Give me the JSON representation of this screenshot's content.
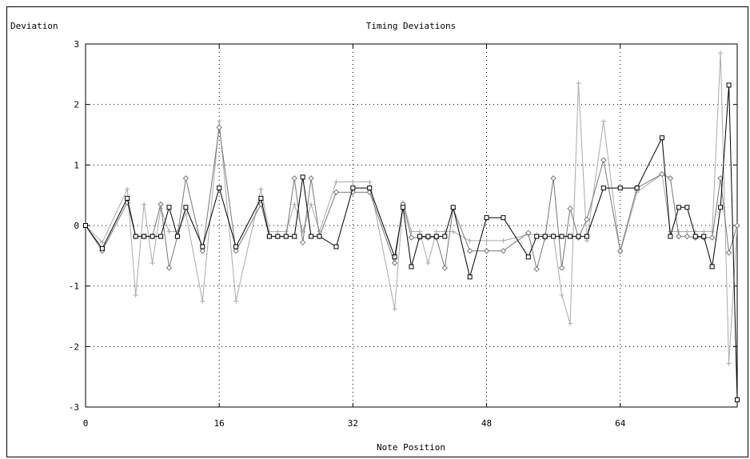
{
  "chart_data": {
    "type": "line",
    "title": "Timing Deviations",
    "xlabel": "Note Position",
    "ylabel": "Deviation",
    "xlim": [
      0,
      78
    ],
    "ylim": [
      -3,
      3
    ],
    "xticks": [
      "0",
      "16",
      "32",
      "48",
      "64"
    ],
    "xtick_values": [
      0,
      16,
      32,
      48,
      64
    ],
    "yticks": [
      "3",
      "2",
      "1",
      "0",
      "-1",
      "-2",
      "-3"
    ],
    "ytick_values": [
      3,
      2,
      1,
      0,
      -1,
      -2,
      -3
    ],
    "grid": true,
    "series": [
      {
        "marker": "square",
        "color": "#000000",
        "x": [
          0,
          2,
          5,
          6,
          7,
          8,
          9,
          10,
          11,
          12,
          14,
          16,
          18,
          21,
          22,
          23,
          24,
          25,
          26,
          27,
          28,
          30,
          32,
          34,
          37,
          38,
          39,
          40,
          41,
          42,
          43,
          44,
          46,
          48,
          50,
          53,
          54,
          55,
          56,
          57,
          58,
          59,
          60,
          62,
          64,
          66,
          69,
          70,
          71,
          72,
          73,
          74,
          75,
          76,
          77,
          78
        ],
        "y": [
          0,
          -0.38,
          0.45,
          -0.18,
          -0.18,
          -0.18,
          -0.18,
          0.3,
          -0.18,
          0.3,
          -0.35,
          0.62,
          -0.35,
          0.45,
          -0.18,
          -0.18,
          -0.18,
          -0.18,
          0.8,
          -0.18,
          -0.18,
          -0.35,
          0.62,
          0.62,
          -0.52,
          0.3,
          -0.68,
          -0.18,
          -0.18,
          -0.18,
          -0.18,
          0.3,
          -0.85,
          0.13,
          0.13,
          -0.52,
          -0.18,
          -0.18,
          -0.18,
          -0.18,
          -0.18,
          -0.18,
          -0.18,
          0.62,
          0.62,
          0.62,
          1.45,
          -0.18,
          0.3,
          0.3,
          -0.18,
          -0.18,
          -0.68,
          0.3,
          2.32,
          -2.88
        ]
      },
      {
        "marker": "diamond",
        "color": "#777777",
        "x": [
          0,
          2,
          5,
          6,
          7,
          8,
          9,
          10,
          11,
          12,
          14,
          16,
          18,
          21,
          22,
          23,
          24,
          25,
          26,
          27,
          28,
          30,
          32,
          34,
          37,
          38,
          39,
          40,
          41,
          42,
          43,
          44,
          46,
          48,
          50,
          53,
          54,
          55,
          56,
          57,
          58,
          59,
          60,
          62,
          64,
          66,
          69,
          70,
          71,
          72,
          73,
          74,
          75,
          76,
          77,
          78
        ],
        "y": [
          0,
          -0.42,
          0.38,
          -0.18,
          -0.18,
          -0.18,
          0.35,
          -0.7,
          -0.18,
          0.78,
          -0.42,
          1.62,
          -0.42,
          0.35,
          -0.18,
          -0.18,
          -0.18,
          0.78,
          -0.28,
          0.78,
          -0.18,
          0.55,
          0.55,
          0.55,
          -0.62,
          0.35,
          -0.2,
          -0.2,
          -0.2,
          -0.2,
          -0.7,
          0.28,
          -0.42,
          -0.42,
          -0.42,
          -0.12,
          -0.72,
          -0.2,
          0.78,
          -0.7,
          0.28,
          -0.2,
          0.1,
          1.08,
          -0.42,
          0.62,
          0.85,
          0.78,
          -0.18,
          -0.18,
          -0.2,
          -0.2,
          -0.2,
          0.78,
          -0.45,
          0
        ]
      },
      {
        "marker": "plus",
        "color": "#aaaaaa",
        "x": [
          0,
          2,
          5,
          6,
          7,
          8,
          9,
          10,
          11,
          12,
          14,
          16,
          18,
          21,
          22,
          23,
          24,
          25,
          26,
          27,
          28,
          30,
          32,
          34,
          37,
          38,
          39,
          40,
          41,
          42,
          43,
          44,
          46,
          48,
          50,
          53,
          54,
          55,
          56,
          57,
          58,
          59,
          60,
          62,
          64,
          66,
          69,
          70,
          71,
          72,
          73,
          74,
          75,
          76,
          77,
          78
        ],
        "y": [
          0,
          -0.28,
          0.6,
          -1.15,
          0.35,
          -0.62,
          0.28,
          -0.1,
          -0.1,
          0.2,
          -1.25,
          1.72,
          -1.25,
          0.6,
          -0.1,
          -0.1,
          -0.1,
          0.35,
          -0.1,
          0.35,
          -0.1,
          0.72,
          0.72,
          0.72,
          -1.38,
          0.38,
          -0.1,
          -0.1,
          -0.62,
          -0.1,
          -0.1,
          -0.1,
          -0.25,
          -0.25,
          -0.25,
          -0.15,
          -0.15,
          -0.15,
          -0.15,
          -1.15,
          -1.62,
          2.35,
          -0.25,
          1.72,
          -0.45,
          0.55,
          0.85,
          -0.1,
          -0.1,
          -0.1,
          -0.1,
          -0.1,
          -0.1,
          2.85,
          -2.28,
          0
        ]
      }
    ]
  }
}
